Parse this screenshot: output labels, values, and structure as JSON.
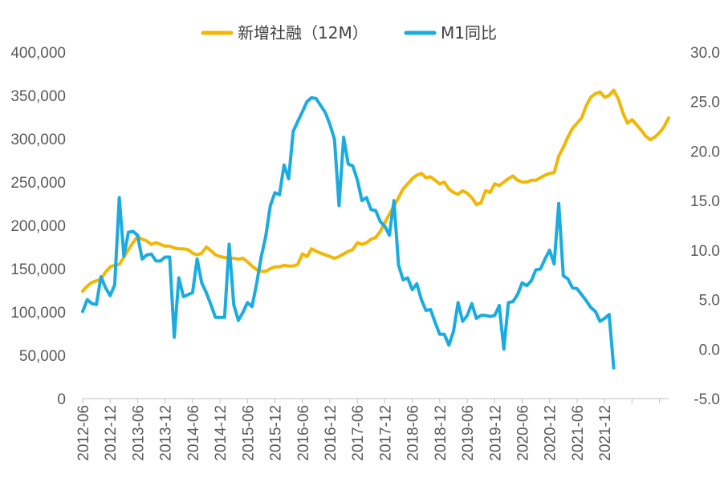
{
  "chart_data": {
    "type": "line",
    "title": "",
    "legend": {
      "placement": "top-center",
      "entries": [
        {
          "label": "新增社融（12M）",
          "color": "#F2B705"
        },
        {
          "label": "M1同比",
          "color": "#1AACE0"
        }
      ]
    },
    "x_tick_labels": [
      "2012-06",
      "2012-12",
      "2013-06",
      "2013-12",
      "2014-06",
      "2014-12",
      "2015-06",
      "2015-12",
      "2016-06",
      "2016-12",
      "2017-06",
      "2017-12",
      "2018-06",
      "2018-12",
      "2019-06",
      "2019-12",
      "2020-06",
      "2020-12",
      "2021-06",
      "2021-12"
    ],
    "y_left": {
      "min": 0,
      "max": 400000,
      "step": 50000,
      "tick_labels": [
        "0",
        "50,000",
        "100,000",
        "150,000",
        "200,000",
        "250,000",
        "300,000",
        "350,000",
        "400,000"
      ]
    },
    "y_right": {
      "min": -5,
      "max": 30,
      "step": 5,
      "tick_labels": [
        "-5.0",
        "0.0",
        "5.0",
        "10.0",
        "15.0",
        "20.0",
        "25.0",
        "30.0"
      ]
    },
    "grid": false,
    "start_month": "2012-06",
    "series": [
      {
        "name": "新增社融（12M）",
        "axis": "left",
        "color": "#F2B705",
        "values": [
          124000,
          130000,
          134000,
          136000,
          138000,
          146000,
          152000,
          154000,
          155000,
          163000,
          172000,
          180000,
          187000,
          184000,
          182000,
          178000,
          180000,
          178000,
          176000,
          176000,
          174000,
          173000,
          173000,
          172000,
          168000,
          166000,
          168000,
          175000,
          171000,
          166000,
          164000,
          163000,
          162000,
          162000,
          161000,
          162000,
          158000,
          153000,
          149000,
          147000,
          147000,
          150000,
          152000,
          152000,
          154000,
          153000,
          153000,
          155000,
          167000,
          164000,
          173000,
          170000,
          168000,
          166000,
          164000,
          162000,
          164000,
          167000,
          170000,
          172000,
          180000,
          178000,
          180000,
          184000,
          186000,
          193000,
          203000,
          213000,
          222000,
          232000,
          242000,
          248000,
          254000,
          258000,
          260000,
          255000,
          256000,
          252000,
          248000,
          250000,
          242000,
          238000,
          236000,
          240000,
          237000,
          232000,
          224000,
          226000,
          240000,
          238000,
          248000,
          246000,
          250000,
          254000,
          257000,
          252000,
          250000,
          250000,
          252000,
          252000,
          255000,
          258000,
          260000,
          261000,
          280000,
          290000,
          302000,
          312000,
          318000,
          324000,
          338000,
          348000,
          352000,
          354000,
          348000,
          350000,
          356000,
          346000,
          330000,
          318000,
          322000,
          316000,
          310000,
          303000,
          299000,
          302000,
          307000,
          314000,
          324000
        ]
      },
      {
        "name": "M1同比",
        "axis": "right",
        "color": "#1AACE0",
        "values": [
          3.8,
          5.0,
          4.6,
          4.5,
          7.3,
          6.2,
          5.4,
          6.5,
          15.3,
          9.4,
          11.8,
          11.9,
          11.5,
          9.1,
          9.5,
          9.6,
          8.9,
          8.9,
          9.3,
          9.3,
          1.2,
          7.2,
          5.3,
          5.5,
          5.7,
          9.1,
          6.7,
          5.7,
          4.5,
          3.2,
          3.2,
          3.2,
          10.6,
          4.5,
          2.9,
          3.7,
          4.7,
          4.3,
          6.6,
          9.3,
          11.4,
          14.5,
          15.8,
          15.6,
          18.6,
          17.2,
          22.0,
          23.0,
          24.0,
          25.0,
          25.4,
          25.3,
          24.6,
          23.9,
          22.7,
          21.2,
          14.5,
          21.4,
          18.7,
          18.5,
          17.1,
          15.0,
          15.3,
          14.1,
          14.0,
          12.9,
          12.4,
          11.5,
          15.0,
          8.5,
          7.0,
          7.2,
          6.0,
          6.6,
          5.0,
          3.9,
          4.0,
          2.7,
          1.5,
          1.5,
          0.4,
          1.8,
          4.7,
          2.8,
          3.4,
          4.6,
          3.1,
          3.4,
          3.4,
          3.3,
          3.4,
          4.4,
          0.0,
          4.7,
          4.8,
          5.5,
          6.7,
          6.4,
          6.9,
          8.0,
          8.1,
          9.1,
          10.0,
          8.6,
          14.7,
          7.4,
          7.1,
          6.2,
          6.1,
          5.5,
          4.9,
          4.2,
          3.8,
          2.8,
          3.1,
          3.5,
          -1.9
        ]
      }
    ]
  }
}
